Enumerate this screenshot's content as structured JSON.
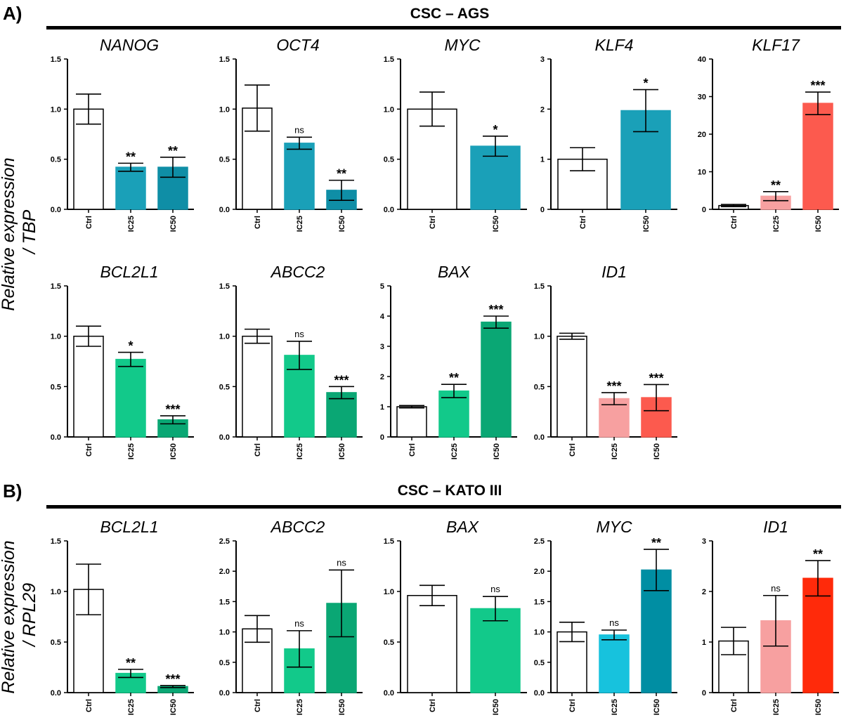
{
  "panels": [
    {
      "label": "A)",
      "title": "CSC – AGS",
      "ylabel_line1": "Relative expression",
      "ylabel_line2": "/ TBP"
    },
    {
      "label": "B)",
      "title": "CSC – KATO III",
      "ylabel_line1": "Relative expression",
      "ylabel_line2": "/ RPL29"
    }
  ],
  "colors": {
    "ctrl": "#ffffff",
    "teal": "#1aa0b8",
    "teal_dark": "#0f8ea6",
    "teal_light": "#17c2dd",
    "teal_deep": "#008ea3",
    "salmon_light": "#f7a0a0",
    "salmon": "#fc5a4e",
    "red": "#ff2a0a",
    "green": "#12c98a",
    "green_dark": "#0aa774"
  },
  "chart_data": [
    {
      "type": "bar",
      "panel": "A",
      "title": "NANOG",
      "categories": [
        "Ctrl",
        "IC25",
        "IC50"
      ],
      "values": [
        1.0,
        0.42,
        0.42
      ],
      "errors": [
        0.15,
        0.04,
        0.1
      ],
      "significance": [
        "",
        "**",
        "**"
      ],
      "colors": [
        "ctrl",
        "teal",
        "teal_dark"
      ],
      "ylim": [
        0,
        1.5
      ],
      "yticks": [
        "0.0",
        "0.5",
        "1.0",
        "1.5"
      ]
    },
    {
      "type": "bar",
      "panel": "A",
      "title": "OCT4",
      "categories": [
        "Ctrl",
        "IC25",
        "IC50"
      ],
      "values": [
        1.01,
        0.66,
        0.19
      ],
      "errors": [
        0.23,
        0.06,
        0.1
      ],
      "significance": [
        "",
        "ns",
        "**"
      ],
      "colors": [
        "ctrl",
        "teal",
        "teal_dark"
      ],
      "ylim": [
        0,
        1.5
      ],
      "yticks": [
        "0.0",
        "0.5",
        "1.0",
        "1.5"
      ]
    },
    {
      "type": "bar",
      "panel": "A",
      "title": "MYC",
      "categories": [
        "Ctrl",
        "IC50"
      ],
      "values": [
        1.0,
        0.63
      ],
      "errors": [
        0.17,
        0.1
      ],
      "significance": [
        "",
        "*"
      ],
      "colors": [
        "ctrl",
        "teal"
      ],
      "ylim": [
        0,
        1.5
      ],
      "yticks": [
        "0.0",
        "0.5",
        "1.0",
        "1.5"
      ]
    },
    {
      "type": "bar",
      "panel": "A",
      "title": "KLF4",
      "categories": [
        "Ctrl",
        "IC50"
      ],
      "values": [
        1.0,
        1.97
      ],
      "errors": [
        0.23,
        0.42
      ],
      "significance": [
        "",
        "*"
      ],
      "colors": [
        "ctrl",
        "teal"
      ],
      "ylim": [
        0,
        3
      ],
      "yticks": [
        "0",
        "1",
        "2",
        "3"
      ]
    },
    {
      "type": "bar",
      "panel": "A",
      "title": "KLF17",
      "categories": [
        "Ctrl",
        "IC25",
        "IC50"
      ],
      "values": [
        1.0,
        3.5,
        28.2
      ],
      "errors": [
        0.3,
        1.2,
        3.0
      ],
      "significance": [
        "",
        "**",
        "***"
      ],
      "colors": [
        "ctrl",
        "salmon_light",
        "salmon"
      ],
      "ylim": [
        0,
        40
      ],
      "yticks": [
        "0",
        "10",
        "20",
        "30",
        "40"
      ]
    },
    {
      "type": "bar",
      "panel": "A",
      "title": "BCL2L1",
      "categories": [
        "Ctrl",
        "IC25",
        "IC50"
      ],
      "values": [
        1.0,
        0.77,
        0.17
      ],
      "errors": [
        0.1,
        0.07,
        0.04
      ],
      "significance": [
        "",
        "*",
        "***"
      ],
      "colors": [
        "ctrl",
        "green",
        "green_dark"
      ],
      "ylim": [
        0,
        1.5
      ],
      "yticks": [
        "0.0",
        "0.5",
        "1.0",
        "1.5"
      ]
    },
    {
      "type": "bar",
      "panel": "A",
      "title": "ABCC2",
      "categories": [
        "Ctrl",
        "IC25",
        "IC50"
      ],
      "values": [
        1.0,
        0.81,
        0.44
      ],
      "errors": [
        0.07,
        0.14,
        0.06
      ],
      "significance": [
        "",
        "ns",
        "***"
      ],
      "colors": [
        "ctrl",
        "green",
        "green_dark"
      ],
      "ylim": [
        0,
        1.5
      ],
      "yticks": [
        "0.0",
        "0.5",
        "1.0",
        "1.5"
      ]
    },
    {
      "type": "bar",
      "panel": "A",
      "title": "BAX",
      "categories": [
        "Ctrl",
        "IC25",
        "IC50"
      ],
      "values": [
        1.0,
        1.52,
        3.8
      ],
      "errors": [
        0.04,
        0.22,
        0.2
      ],
      "significance": [
        "",
        "**",
        "***"
      ],
      "colors": [
        "ctrl",
        "green",
        "green_dark"
      ],
      "ylim": [
        0,
        5
      ],
      "yticks": [
        "0",
        "1",
        "2",
        "3",
        "4",
        "5"
      ]
    },
    {
      "type": "bar",
      "panel": "A",
      "title": "ID1",
      "categories": [
        "Ctrl",
        "IC25",
        "IC50"
      ],
      "values": [
        1.0,
        0.38,
        0.39
      ],
      "errors": [
        0.03,
        0.06,
        0.13
      ],
      "significance": [
        "",
        "***",
        "***"
      ],
      "colors": [
        "ctrl",
        "salmon_light",
        "salmon"
      ],
      "ylim": [
        0,
        1.5
      ],
      "yticks": [
        "0.0",
        "0.5",
        "1.0",
        "1.5"
      ]
    },
    {
      "type": "bar",
      "panel": "B",
      "title": "BCL2L1",
      "categories": [
        "Ctrl",
        "IC25",
        "IC50"
      ],
      "values": [
        1.02,
        0.19,
        0.06
      ],
      "errors": [
        0.25,
        0.04,
        0.01
      ],
      "significance": [
        "",
        "**",
        "***"
      ],
      "colors": [
        "ctrl",
        "green",
        "green_dark"
      ],
      "ylim": [
        0,
        1.5
      ],
      "yticks": [
        "0.0",
        "0.5",
        "1.0",
        "1.5"
      ]
    },
    {
      "type": "bar",
      "panel": "B",
      "title": "ABCC2",
      "categories": [
        "Ctrl",
        "IC25",
        "IC50"
      ],
      "values": [
        1.05,
        0.72,
        1.47
      ],
      "errors": [
        0.22,
        0.3,
        0.55
      ],
      "significance": [
        "",
        "ns",
        "ns"
      ],
      "colors": [
        "ctrl",
        "green",
        "green_dark"
      ],
      "ylim": [
        0,
        2.5
      ],
      "yticks": [
        "0.0",
        "0.5",
        "1.0",
        "1.5",
        "2.0",
        "2.5"
      ]
    },
    {
      "type": "bar",
      "panel": "B",
      "title": "BAX",
      "categories": [
        "Ctrl",
        "IC50"
      ],
      "values": [
        0.96,
        0.83
      ],
      "errors": [
        0.1,
        0.12
      ],
      "significance": [
        "",
        "ns"
      ],
      "colors": [
        "ctrl",
        "green"
      ],
      "ylim": [
        0,
        1.5
      ],
      "yticks": [
        "0.0",
        "0.5",
        "1.0",
        "1.5"
      ]
    },
    {
      "type": "bar",
      "panel": "B",
      "title": "MYC",
      "categories": [
        "Ctrl",
        "IC25",
        "IC50"
      ],
      "values": [
        1.0,
        0.95,
        2.02
      ],
      "errors": [
        0.16,
        0.08,
        0.34
      ],
      "significance": [
        "",
        "ns",
        "**"
      ],
      "colors": [
        "ctrl",
        "teal_light",
        "teal_deep"
      ],
      "ylim": [
        0,
        2.5
      ],
      "yticks": [
        "0.0",
        "0.5",
        "1.0",
        "1.5",
        "2.0",
        "2.5"
      ]
    },
    {
      "type": "bar",
      "panel": "B",
      "title": "ID1",
      "categories": [
        "Ctrl",
        "IC25",
        "IC50"
      ],
      "values": [
        1.02,
        1.42,
        2.26
      ],
      "errors": [
        0.27,
        0.5,
        0.35
      ],
      "significance": [
        "",
        "ns",
        "**"
      ],
      "colors": [
        "ctrl",
        "salmon_light",
        "red"
      ],
      "ylim": [
        0,
        3
      ],
      "yticks": [
        "0",
        "1",
        "2",
        "3"
      ]
    }
  ]
}
